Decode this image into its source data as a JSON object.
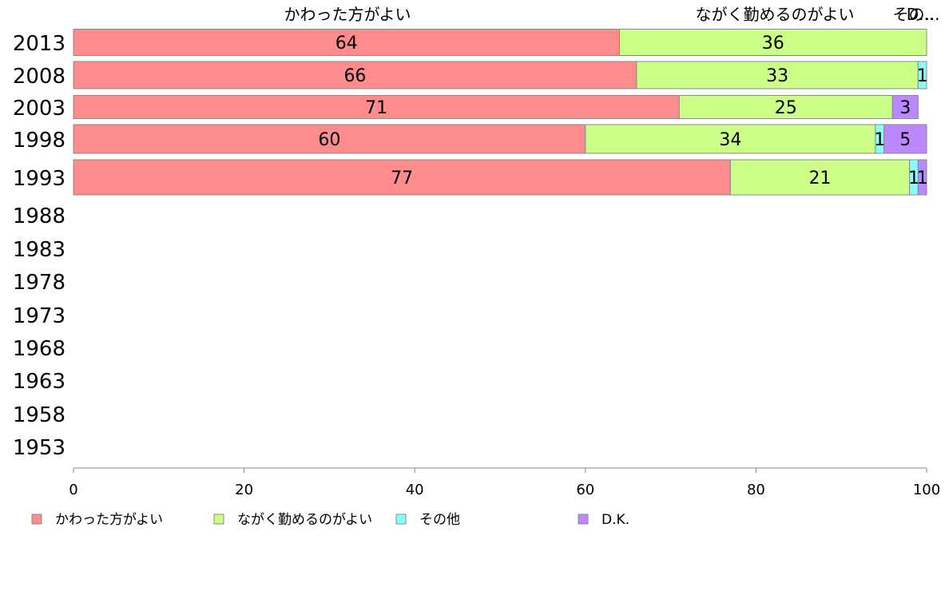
{
  "chart_data": {
    "type": "bar",
    "orientation": "horizontal",
    "stacked": true,
    "categories": [
      "2013",
      "2008",
      "2003",
      "1998",
      "1993",
      "1988",
      "1983",
      "1978",
      "1973",
      "1968",
      "1963",
      "1958",
      "1953"
    ],
    "series": [
      {
        "name": "かわった方がよい",
        "color": "#ff8c8c",
        "values": [
          64,
          66,
          71,
          60,
          77,
          null,
          null,
          null,
          null,
          null,
          null,
          null,
          null
        ]
      },
      {
        "name": "ながく勤めるのがよい",
        "color": "#ccff88",
        "values": [
          36,
          33,
          25,
          34,
          21,
          null,
          null,
          null,
          null,
          null,
          null,
          null,
          null
        ]
      },
      {
        "name": "その他",
        "color": "#88ffff",
        "values": [
          0,
          1,
          0,
          1,
          1,
          null,
          null,
          null,
          null,
          null,
          null,
          null,
          null
        ]
      },
      {
        "name": "D.K.",
        "color": "#bb88ff",
        "values": [
          0,
          0,
          3,
          5,
          1,
          null,
          null,
          null,
          null,
          null,
          null,
          null,
          null
        ]
      }
    ],
    "top_labels": [
      "かわった方がよい",
      "ながく勤めるのがよい",
      "その...",
      "D..."
    ],
    "xlim": [
      0,
      100
    ],
    "xticks": [
      0,
      20,
      40,
      60,
      80,
      100
    ],
    "legend_position": "bottom",
    "grid": false
  }
}
